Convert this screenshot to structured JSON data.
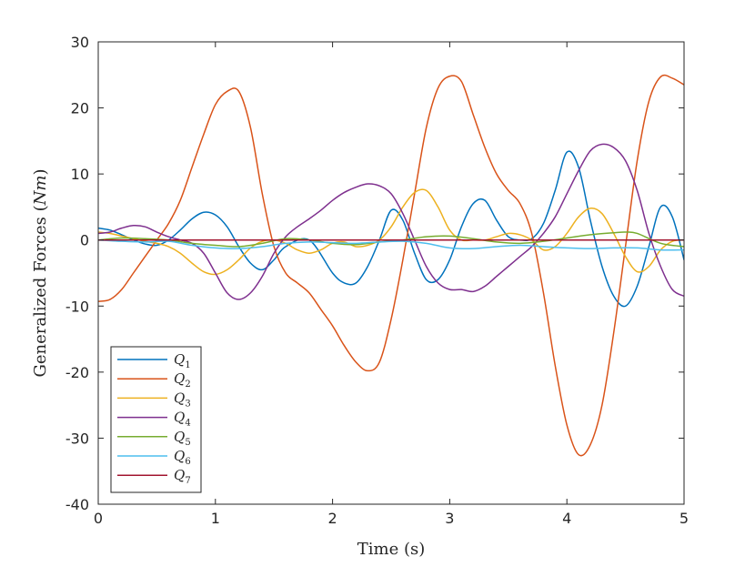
{
  "chart_data": {
    "type": "line",
    "xlabel": "Time (s)",
    "ylabel_text": "Generalized Forces (",
    "ylabel_unit": "Nm",
    "ylabel_close": ")",
    "xlim": [
      0,
      5
    ],
    "ylim": [
      -40,
      30
    ],
    "xticks": [
      0,
      1,
      2,
      3,
      4,
      5
    ],
    "yticks": [
      -40,
      -30,
      -20,
      -10,
      0,
      10,
      20,
      30
    ],
    "xtick_labels": [
      "0",
      "1",
      "2",
      "3",
      "4",
      "5"
    ],
    "ytick_labels": [
      "-40",
      "-30",
      "-20",
      "-10",
      "0",
      "10",
      "20",
      "30"
    ],
    "grid": false,
    "legend_position": "bottom-left",
    "series": [
      {
        "name": "Q",
        "subscript": "1",
        "color": "#0072BD",
        "x": [
          0,
          0.1,
          0.2,
          0.3,
          0.4,
          0.5,
          0.6,
          0.7,
          0.8,
          0.9,
          1.0,
          1.1,
          1.2,
          1.3,
          1.4,
          1.5,
          1.6,
          1.8,
          2.0,
          2.1,
          2.2,
          2.3,
          2.4,
          2.5,
          2.6,
          2.7,
          2.8,
          2.9,
          3.0,
          3.1,
          3.2,
          3.3,
          3.4,
          3.5,
          3.6,
          3.7,
          3.8,
          3.9,
          4.0,
          4.1,
          4.2,
          4.3,
          4.4,
          4.5,
          4.6,
          4.7,
          4.8,
          4.9,
          5.0
        ],
        "y": [
          1.8,
          1.5,
          0.8,
          0,
          -0.6,
          -0.8,
          0,
          1.5,
          3.2,
          4.2,
          3.8,
          2,
          -1,
          -3.5,
          -4.5,
          -3,
          -1,
          0,
          -5,
          -6.5,
          -6.5,
          -4,
          0,
          4.5,
          3,
          -2,
          -6,
          -6,
          -3,
          2,
          5.5,
          6,
          3,
          0.5,
          0,
          0.2,
          2.5,
          7.5,
          13.3,
          11,
          3,
          -4,
          -8.5,
          -10,
          -7,
          -1,
          5,
          3.5,
          -3
        ]
      },
      {
        "name": "Q",
        "subscript": "2",
        "color": "#D95319",
        "x": [
          0,
          0.1,
          0.2,
          0.3,
          0.4,
          0.5,
          0.6,
          0.7,
          0.8,
          0.9,
          1.0,
          1.1,
          1.2,
          1.3,
          1.4,
          1.5,
          1.6,
          1.7,
          1.8,
          1.9,
          2.0,
          2.1,
          2.2,
          2.3,
          2.4,
          2.5,
          2.6,
          2.7,
          2.8,
          2.9,
          3.0,
          3.1,
          3.2,
          3.3,
          3.4,
          3.5,
          3.6,
          3.7,
          3.8,
          3.9,
          4.0,
          4.1,
          4.2,
          4.3,
          4.4,
          4.5,
          4.6,
          4.7,
          4.8,
          4.9,
          5.0
        ],
        "y": [
          -9.3,
          -9,
          -7.5,
          -5,
          -2.5,
          0,
          2.5,
          6,
          11,
          16,
          20.5,
          22.5,
          22.5,
          17,
          7,
          -1,
          -5,
          -6.5,
          -8,
          -10.5,
          -13,
          -16,
          -18.5,
          -19.8,
          -18.5,
          -12,
          -3,
          7,
          17,
          23,
          24.8,
          24,
          19,
          14,
          10,
          7.5,
          5.5,
          1,
          -8,
          -19,
          -28,
          -32.5,
          -31,
          -25,
          -14,
          -1,
          12,
          21,
          24.7,
          24.5,
          23.5
        ]
      },
      {
        "name": "Q",
        "subscript": "3",
        "color": "#EDB120",
        "x": [
          0,
          0.1,
          0.2,
          0.3,
          0.4,
          0.5,
          0.6,
          0.7,
          0.8,
          0.9,
          1.0,
          1.1,
          1.2,
          1.3,
          1.4,
          1.5,
          1.6,
          1.7,
          1.8,
          1.9,
          2.0,
          2.1,
          2.2,
          2.3,
          2.4,
          2.5,
          2.6,
          2.7,
          2.8,
          2.9,
          3.0,
          3.1,
          3.2,
          3.3,
          3.4,
          3.5,
          3.6,
          3.7,
          3.8,
          3.9,
          4.0,
          4.1,
          4.2,
          4.3,
          4.4,
          4.5,
          4.6,
          4.7,
          4.8,
          4.9,
          5.0
        ],
        "y": [
          1.2,
          1,
          0.6,
          0.2,
          -0.2,
          -0.5,
          -1,
          -2,
          -3.5,
          -4.8,
          -5.2,
          -4.5,
          -3,
          -1.2,
          -0.2,
          0,
          -0.5,
          -1.5,
          -2,
          -1.5,
          -0.5,
          -0.3,
          -1,
          -0.8,
          0,
          2,
          5,
          7.2,
          7.5,
          5,
          1.5,
          0,
          0,
          0,
          0.5,
          1,
          0.8,
          0,
          -1.5,
          -1,
          1,
          3.5,
          4.8,
          4,
          1,
          -2.5,
          -4.8,
          -4,
          -1.5,
          -0.2,
          0
        ]
      },
      {
        "name": "Q",
        "subscript": "4",
        "color": "#7E2F8E",
        "x": [
          0,
          0.1,
          0.2,
          0.3,
          0.4,
          0.5,
          0.6,
          0.7,
          0.8,
          0.9,
          1.0,
          1.1,
          1.2,
          1.3,
          1.4,
          1.5,
          1.6,
          1.7,
          1.8,
          1.9,
          2.0,
          2.1,
          2.2,
          2.3,
          2.4,
          2.5,
          2.6,
          2.7,
          2.8,
          2.9,
          3.0,
          3.1,
          3.2,
          3.3,
          3.4,
          3.5,
          3.6,
          3.7,
          3.8,
          3.9,
          4.0,
          4.1,
          4.2,
          4.3,
          4.4,
          4.5,
          4.6,
          4.7,
          4.8,
          4.9,
          5.0
        ],
        "y": [
          1,
          1.2,
          1.8,
          2.2,
          2,
          1.2,
          0.5,
          0,
          -0.5,
          -2,
          -5,
          -8,
          -9,
          -8,
          -5.5,
          -2,
          0.5,
          2,
          3.2,
          4.5,
          6,
          7.2,
          8,
          8.5,
          8.2,
          7,
          4,
          0,
          -4,
          -6.5,
          -7.5,
          -7.5,
          -7.8,
          -7,
          -5.5,
          -4,
          -2.5,
          -1,
          1,
          3.5,
          7,
          10.5,
          13.5,
          14.5,
          14,
          12,
          7.5,
          1,
          -4,
          -7.5,
          -8.5
        ]
      },
      {
        "name": "Q",
        "subscript": "5",
        "color": "#77AC30",
        "x": [
          0,
          0.2,
          0.4,
          0.6,
          0.8,
          1.0,
          1.2,
          1.4,
          1.6,
          1.8,
          2.0,
          2.2,
          2.4,
          2.6,
          2.8,
          3.0,
          3.2,
          3.4,
          3.6,
          3.8,
          4.0,
          4.2,
          4.4,
          4.5,
          4.6,
          4.8,
          5.0
        ],
        "y": [
          0,
          0.3,
          0.2,
          0,
          -0.5,
          -0.8,
          -1,
          -0.5,
          0.2,
          0,
          -0.5,
          -0.7,
          -0.3,
          0,
          0.5,
          0.6,
          0.2,
          -0.3,
          -0.5,
          -0.2,
          0.3,
          0.8,
          1.1,
          1.2,
          1,
          -0.5,
          -1
        ]
      },
      {
        "name": "Q",
        "subscript": "6",
        "color": "#4DBEEE",
        "x": [
          0,
          0.2,
          0.4,
          0.6,
          0.8,
          1.0,
          1.2,
          1.4,
          1.6,
          1.8,
          2.0,
          2.2,
          2.4,
          2.6,
          2.8,
          3.0,
          3.2,
          3.4,
          3.6,
          3.8,
          4.0,
          4.2,
          4.4,
          4.6,
          4.8,
          5.0
        ],
        "y": [
          0,
          -0.2,
          -0.3,
          -0.2,
          -0.8,
          -1.2,
          -1.3,
          -1,
          -0.5,
          -0.3,
          -0.4,
          -0.5,
          -0.3,
          -0.2,
          -0.5,
          -1.2,
          -1.3,
          -1,
          -0.8,
          -1,
          -1.2,
          -1.3,
          -1.2,
          -1.2,
          -1.5,
          -1.5
        ]
      },
      {
        "name": "Q",
        "subscript": "7",
        "color": "#A2142F",
        "x": [
          0,
          1,
          2,
          3,
          4,
          5
        ],
        "y": [
          0,
          0,
          0,
          0,
          0,
          0
        ]
      }
    ]
  }
}
